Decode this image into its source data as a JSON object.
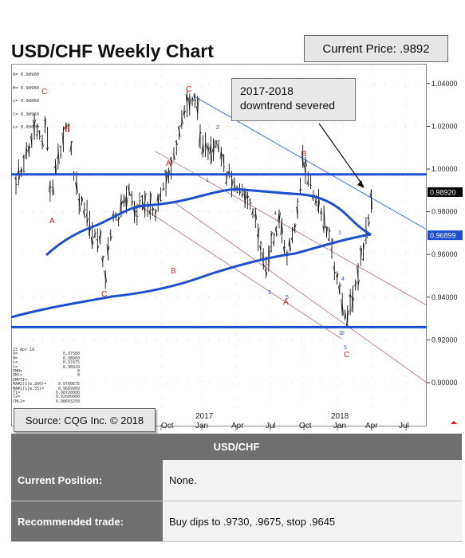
{
  "header": {
    "title": "USD/CHF Weekly Chart",
    "current_price_label": "Current Price: .9892"
  },
  "ohlc_lines": [
    "O= 0.98900",
    "H= 0.98960",
    "L= 0.98860",
    "C= 0.98920",
    "L= 0.00000"
  ],
  "annotation": {
    "line1": "2017-2018",
    "line2": "downtrend severed"
  },
  "source": "Source: CQG Inc. © 2018",
  "stats": [
    {
      "k": "23 Apr 18",
      "v": ""
    },
    {
      "k": "O=",
      "v": "0.97580"
    },
    {
      "k": "H=",
      "v": "0.98960"
    },
    {
      "k": "L=",
      "v": "0.97475"
    },
    {
      "k": "C=",
      "v": "0.98920"
    },
    {
      "k": "EMH=",
      "v": "0"
    },
    {
      "k": "EMl=",
      "v": "0"
    },
    {
      "k": "EMPTI=",
      "v": ""
    },
    {
      "k": "MA#2(S|m,200)=",
      "v": "0.9700675"
    },
    {
      "k": "MA#2(S|m,55)=",
      "v": "0.9689909"
    },
    {
      "k": "T1=",
      "v": "0.98720000"
    },
    {
      "k": "T2=",
      "v": "0.92600000"
    },
    {
      "k": "CHL1=",
      "v": "0.98603250"
    }
  ],
  "table": {
    "heading": "USD/CHF",
    "rows": [
      {
        "label": "Current Position:",
        "value": "None."
      },
      {
        "label": "Recommended trade:",
        "value": "Buy dips to .9730, .9675, stop .9645"
      }
    ]
  },
  "chart_data": {
    "type": "ohlc",
    "title": "USD/CHF Weekly Chart",
    "x_tick_labels": [
      "Oct",
      "Jan",
      "Apr",
      "Jul",
      "Oct",
      "Jan",
      "Apr",
      "Jul"
    ],
    "year_labels": [
      "2017",
      "2018"
    ],
    "y_tick_labels": [
      "1.04000",
      "1.02000",
      "1.00000",
      "0.98000",
      "0.96000",
      "0.94000",
      "0.92000",
      "0.90000"
    ],
    "ylim": [
      0.89,
      1.047
    ],
    "price_tags": [
      {
        "value": 0.9892,
        "label": "0.98920",
        "color": "#000000"
      },
      {
        "value": 0.96899,
        "label": "0.96899",
        "color": "#1f4fd1"
      }
    ],
    "horizontal_lines": [
      0.9975,
      0.926
    ],
    "wave_labels": [
      {
        "text": "C",
        "color": "#d42020"
      },
      {
        "text": "B",
        "color": "#d42020"
      },
      {
        "text": "A",
        "color": "#d42020"
      },
      {
        "text": "C",
        "color": "#d42020"
      },
      {
        "text": "C",
        "color": "#d42020"
      },
      {
        "text": "A",
        "color": "#d42020"
      },
      {
        "text": "B",
        "color": "#d42020"
      },
      {
        "text": "B",
        "color": "#d42020"
      },
      {
        "text": "A",
        "color": "#d42020"
      },
      {
        "text": "C",
        "color": "#d42020"
      },
      {
        "text": "2",
        "color": "#2a50c8"
      },
      {
        "text": "1",
        "color": "#2a50c8"
      },
      {
        "text": "4",
        "color": "#2a50c8"
      },
      {
        "text": "3",
        "color": "#2a50c8"
      },
      {
        "text": "5",
        "color": "#2a50c8"
      },
      {
        "text": "2",
        "color": "#2a50c8"
      },
      {
        "text": "1",
        "color": "#2a50c8"
      },
      {
        "text": "4",
        "color": "#2a50c8"
      },
      {
        "text": "3",
        "color": "#2a50c8"
      },
      {
        "text": "5",
        "color": "#2a50c8"
      }
    ],
    "colors": {
      "bars": "#111111",
      "ma_lines": "#1f4fd1",
      "trend_line": "#3a6ee0",
      "channel": "#b04040",
      "wave_abc": "#d42020",
      "wave_num": "#2a50c8"
    }
  }
}
